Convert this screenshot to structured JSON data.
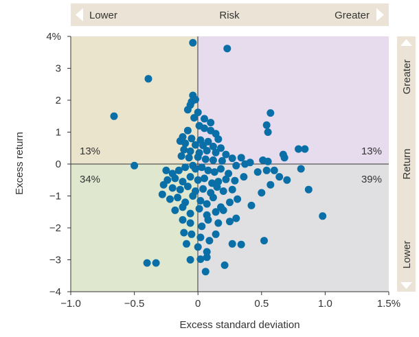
{
  "risk_bar": {
    "left": "Lower",
    "center": "Risk",
    "right": "Greater"
  },
  "return_bar": {
    "top": "Greater",
    "center": "Return",
    "bottom": "Lower"
  },
  "colors": {
    "bar": "#ebe4d6",
    "arrow": "#ffffff",
    "q_top_left": "#eae4cd",
    "q_top_right": "#e6dced",
    "q_bottom_left": "#dfe8cf",
    "q_bottom_right": "#e0e0e2",
    "pct_top_left": "#b5a431",
    "pct_top_right": "#9f85bf",
    "pct_bottom_left": "#80a948",
    "pct_bottom_right": "#8c8c8c",
    "dot": "#0a6fa6"
  },
  "chart_data": {
    "type": "scatter",
    "xlabel": "Excess standard deviation",
    "ylabel": "Excess return",
    "xlim": [
      -1.0,
      1.5
    ],
    "ylim": [
      -4,
      4
    ],
    "x_ticks": [
      {
        "value": -1.0,
        "label": "−1.0"
      },
      {
        "value": -0.5,
        "label": "−0.5"
      },
      {
        "value": 0,
        "label": "0"
      },
      {
        "value": 0.5,
        "label": "0.5"
      },
      {
        "value": 1.0,
        "label": "1.0"
      },
      {
        "value": 1.5,
        "label": "1.5%"
      }
    ],
    "y_ticks": [
      {
        "value": 4,
        "label": "4%"
      },
      {
        "value": 3,
        "label": "3"
      },
      {
        "value": 2,
        "label": "2"
      },
      {
        "value": 1,
        "label": "1"
      },
      {
        "value": 0,
        "label": "0"
      },
      {
        "value": -1,
        "label": "−1"
      },
      {
        "value": -2,
        "label": "−2"
      },
      {
        "value": -3,
        "label": "−3"
      },
      {
        "value": -4,
        "label": "−4"
      }
    ],
    "quadrant_labels": {
      "top_left": "13%",
      "top_right": "13%",
      "bottom_left": "34%",
      "bottom_right": "39%"
    },
    "grid": false,
    "points": [
      [
        -0.04,
        3.8
      ],
      [
        0.23,
        3.62
      ],
      [
        -0.39,
        2.67
      ],
      [
        -0.66,
        1.5
      ],
      [
        -0.5,
        -0.05
      ],
      [
        -0.4,
        -3.1
      ],
      [
        -0.33,
        -3.1
      ],
      [
        -0.06,
        -3.0
      ],
      [
        0.02,
        -2.98
      ],
      [
        0.07,
        -2.92
      ],
      [
        0.21,
        -3.17
      ],
      [
        0.06,
        -3.37
      ],
      [
        0.57,
        1.6
      ],
      [
        0.54,
        1.22
      ],
      [
        0.55,
        1.0
      ],
      [
        0.67,
        0.3
      ],
      [
        0.68,
        0.2
      ],
      [
        0.79,
        0.47
      ],
      [
        0.84,
        0.47
      ],
      [
        0.81,
        -0.15
      ],
      [
        0.7,
        -0.5
      ],
      [
        0.64,
        -0.4
      ],
      [
        0.6,
        -0.2
      ],
      [
        0.54,
        -0.2
      ],
      [
        0.51,
        0.12
      ],
      [
        0.55,
        0.08
      ],
      [
        0.87,
        -0.8
      ],
      [
        0.98,
        -1.63
      ],
      [
        0.5,
        -0.9
      ],
      [
        0.57,
        -0.65
      ],
      [
        0.47,
        -0.25
      ],
      [
        0.52,
        -2.4
      ],
      [
        0.34,
        -2.52
      ],
      [
        -0.04,
        2.15
      ],
      [
        -0.02,
        2.02
      ],
      [
        -0.05,
        1.95
      ],
      [
        -0.06,
        1.85
      ],
      [
        -0.08,
        1.7
      ],
      [
        0.0,
        1.62
      ],
      [
        -0.03,
        1.45
      ],
      [
        0.05,
        1.42
      ],
      [
        0.1,
        1.3
      ],
      [
        0.01,
        1.2
      ],
      [
        0.05,
        1.12
      ],
      [
        0.1,
        1.05
      ],
      [
        0.14,
        0.95
      ],
      [
        -0.08,
        1.05
      ],
      [
        -0.12,
        0.85
      ],
      [
        -0.05,
        0.8
      ],
      [
        0.02,
        0.75
      ],
      [
        0.08,
        0.7
      ],
      [
        0.16,
        0.78
      ],
      [
        -0.14,
        0.72
      ],
      [
        -0.1,
        0.65
      ],
      [
        -0.02,
        0.6
      ],
      [
        0.04,
        0.58
      ],
      [
        0.12,
        0.55
      ],
      [
        0.18,
        0.5
      ],
      [
        -0.11,
        0.45
      ],
      [
        -0.06,
        0.4
      ],
      [
        0.01,
        0.35
      ],
      [
        0.07,
        0.42
      ],
      [
        0.14,
        0.36
      ],
      [
        0.22,
        0.3
      ],
      [
        -0.13,
        0.25
      ],
      [
        -0.07,
        0.2
      ],
      [
        0.0,
        0.22
      ],
      [
        0.06,
        0.15
      ],
      [
        0.12,
        0.12
      ],
      [
        0.19,
        0.1
      ],
      [
        0.27,
        0.18
      ],
      [
        0.34,
        0.2
      ],
      [
        0.41,
        0.05
      ],
      [
        0.37,
        0.0
      ],
      [
        0.3,
        -0.05
      ],
      [
        -0.25,
        -0.2
      ],
      [
        -0.2,
        -0.3
      ],
      [
        -0.15,
        -0.2
      ],
      [
        -0.1,
        -0.1
      ],
      [
        -0.04,
        -0.05
      ],
      [
        -0.02,
        -0.15
      ],
      [
        0.03,
        -0.1
      ],
      [
        0.08,
        -0.2
      ],
      [
        0.13,
        -0.25
      ],
      [
        0.18,
        -0.15
      ],
      [
        0.24,
        -0.3
      ],
      [
        -0.24,
        -0.5
      ],
      [
        -0.18,
        -0.45
      ],
      [
        -0.12,
        -0.55
      ],
      [
        -0.06,
        -0.4
      ],
      [
        0.0,
        -0.5
      ],
      [
        0.05,
        -0.45
      ],
      [
        0.11,
        -0.6
      ],
      [
        0.16,
        -0.55
      ],
      [
        0.22,
        -0.48
      ],
      [
        0.29,
        -0.52
      ],
      [
        0.36,
        -0.4
      ],
      [
        -0.27,
        -0.65
      ],
      [
        -0.2,
        -0.75
      ],
      [
        -0.14,
        -0.8
      ],
      [
        -0.08,
        -0.7
      ],
      [
        -0.02,
        -0.85
      ],
      [
        0.04,
        -0.78
      ],
      [
        0.1,
        -0.9
      ],
      [
        0.15,
        -0.72
      ],
      [
        0.2,
        -0.85
      ],
      [
        0.27,
        -0.8
      ],
      [
        -0.28,
        -0.95
      ],
      [
        -0.22,
        -1.1
      ],
      [
        -0.16,
        -1.05
      ],
      [
        -0.1,
        -1.2
      ],
      [
        -0.04,
        -1.0
      ],
      [
        0.02,
        -1.15
      ],
      [
        0.07,
        -1.25
      ],
      [
        0.12,
        -1.05
      ],
      [
        0.18,
        -1.35
      ],
      [
        0.25,
        -1.2
      ],
      [
        0.31,
        -1.1
      ],
      [
        -0.18,
        -1.45
      ],
      [
        -0.12,
        -1.35
      ],
      [
        -0.06,
        -1.55
      ],
      [
        0.01,
        -1.4
      ],
      [
        0.07,
        -1.6
      ],
      [
        0.14,
        -1.5
      ],
      [
        0.2,
        -1.45
      ],
      [
        0.3,
        -1.7
      ],
      [
        0.42,
        -1.3
      ],
      [
        -0.12,
        -1.75
      ],
      [
        -0.06,
        -1.85
      ],
      [
        0.03,
        -1.95
      ],
      [
        0.08,
        -1.75
      ],
      [
        0.16,
        -1.85
      ],
      [
        0.25,
        -1.8
      ],
      [
        -0.11,
        -2.15
      ],
      [
        -0.05,
        -2.2
      ],
      [
        0.02,
        -2.3
      ],
      [
        0.09,
        -2.4
      ],
      [
        0.14,
        -2.2
      ],
      [
        -0.09,
        -2.5
      ],
      [
        0.0,
        -2.6
      ],
      [
        0.07,
        -2.75
      ],
      [
        0.27,
        -2.5
      ]
    ]
  }
}
